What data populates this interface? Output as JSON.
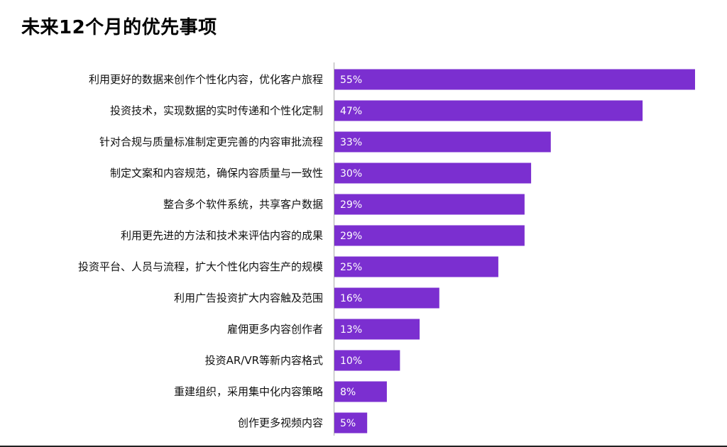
{
  "chart_data": {
    "type": "bar",
    "orientation": "horizontal",
    "title": "未来12个月的优先事项",
    "xlabel": "",
    "ylabel": "",
    "xlim": [
      0,
      55
    ],
    "grid": false,
    "bar_color": "#7B2FD0",
    "value_suffix": "%",
    "categories": [
      "利用更好的数据来创作个性化内容，优化客户旅程",
      "投资技术，实现数据的实时传递和个性化定制",
      "针对合规与质量标准制定更完善的内容审批流程",
      "制定文案和内容规范，确保内容质量与一致性",
      "整合多个软件系统，共享客户数据",
      "利用更先进的方法和技术来评估内容的成果",
      "投资平台、人员与流程，扩大个性化内容生产的规模",
      "利用广告投资扩大内容触及范围",
      "雇佣更多内容创作者",
      "投资AR/VR等新内容格式",
      "重建组织，采用集中化内容策略",
      "创作更多视频内容"
    ],
    "values": [
      55,
      47,
      33,
      30,
      29,
      29,
      25,
      16,
      13,
      10,
      8,
      5
    ],
    "labels": [
      "55%",
      "47%",
      "33%",
      "30%",
      "29%",
      "29%",
      "25%",
      "16%",
      "13%",
      "10%",
      "8%",
      "5%"
    ]
  }
}
